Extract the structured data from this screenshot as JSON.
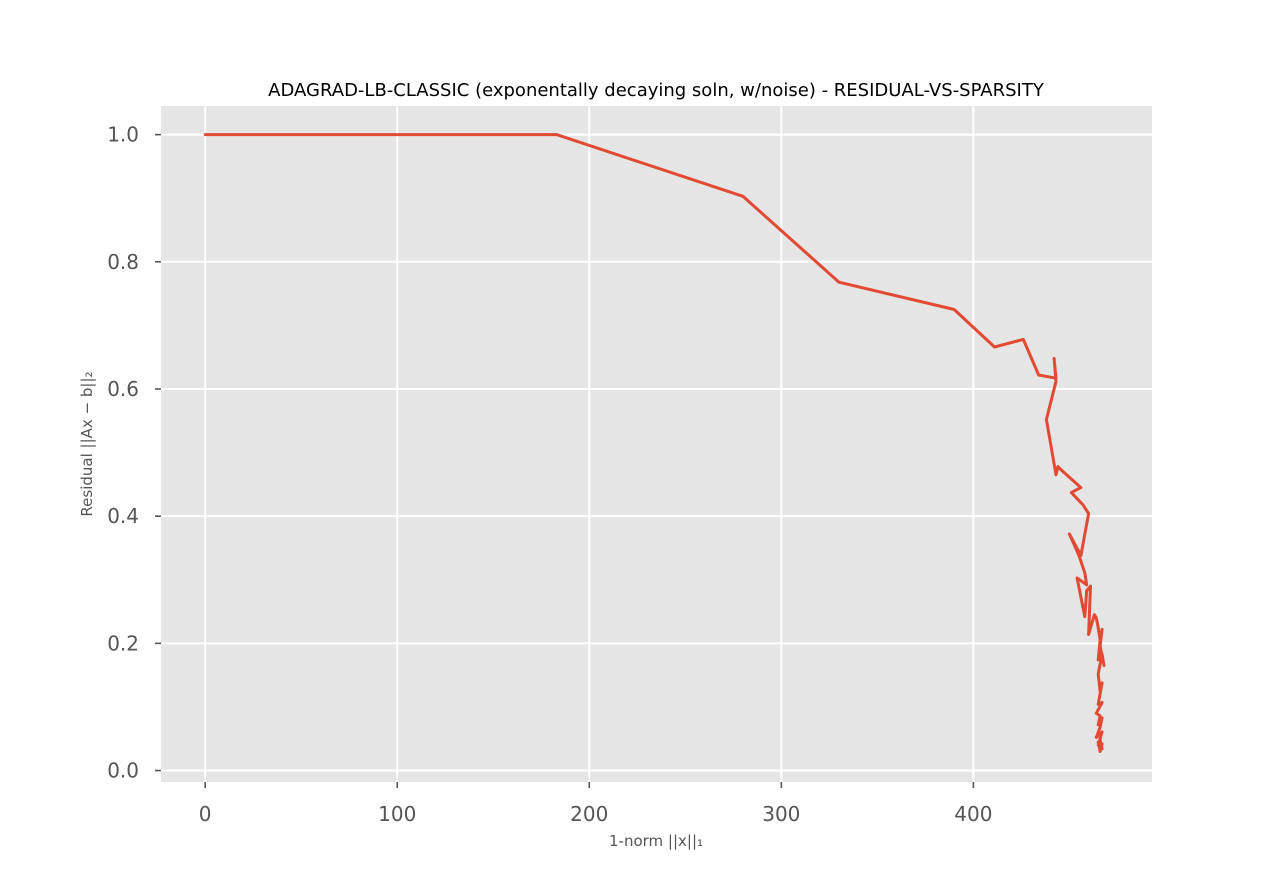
{
  "chart_data": {
    "type": "line",
    "title": "ADAGRAD-LB-CLASSIC (exponentally decaying soln, w/noise) - RESIDUAL-VS-SPARSITY",
    "xlabel": "1-norm ||x||₁",
    "ylabel": "Residual ||Ax − b||₂",
    "xlim": [
      -23,
      493
    ],
    "ylim": [
      -0.018,
      1.045
    ],
    "xticks": [
      0,
      100,
      200,
      300,
      400
    ],
    "yticks": [
      0.0,
      0.2,
      0.4,
      0.6,
      0.8,
      1.0
    ],
    "xtick_labels": [
      "0",
      "100",
      "200",
      "300",
      "400"
    ],
    "ytick_labels": [
      "0.0",
      "0.2",
      "0.4",
      "0.6",
      "0.8",
      "1.0"
    ],
    "grid": true,
    "colors": {
      "line": "#e24a33",
      "background": "#e5e5e5",
      "grid": "#ffffff"
    },
    "series": [
      {
        "x": [
          0,
          183,
          280,
          330,
          390,
          411,
          426,
          434,
          443,
          442,
          443,
          438,
          443,
          444,
          446,
          456,
          451,
          457,
          460,
          456,
          450,
          455,
          458,
          459,
          454,
          458,
          459,
          461,
          460,
          463,
          464,
          465,
          466,
          465,
          467,
          466,
          468,
          467,
          465,
          466,
          467,
          465,
          467,
          464,
          466,
          465,
          467,
          466,
          464,
          467,
          465,
          466,
          467,
          465,
          466,
          467
        ],
        "y": [
          1.0,
          1.0,
          0.903,
          0.768,
          0.725,
          0.666,
          0.678,
          0.622,
          0.617,
          0.648,
          0.612,
          0.552,
          0.465,
          0.478,
          0.472,
          0.445,
          0.437,
          0.418,
          0.404,
          0.338,
          0.372,
          0.338,
          0.311,
          0.292,
          0.303,
          0.242,
          0.283,
          0.29,
          0.214,
          0.245,
          0.24,
          0.225,
          0.205,
          0.174,
          0.222,
          0.196,
          0.165,
          0.183,
          0.152,
          0.125,
          0.138,
          0.104,
          0.107,
          0.09,
          0.086,
          0.072,
          0.083,
          0.068,
          0.052,
          0.061,
          0.04,
          0.048,
          0.034,
          0.045,
          0.03,
          0.042
        ]
      }
    ]
  }
}
